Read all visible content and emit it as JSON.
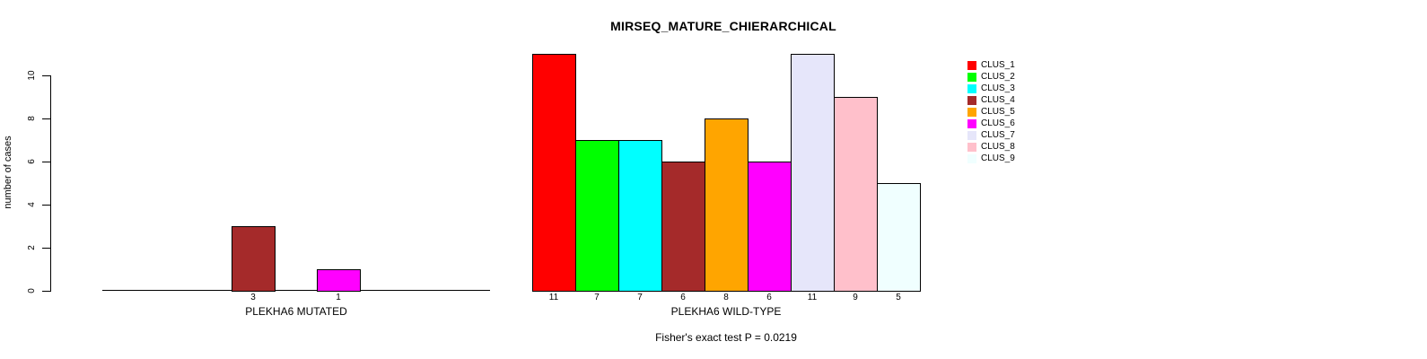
{
  "chart_data": {
    "type": "bar",
    "title": "MIRSEQ_MATURE_CHIERARCHICAL",
    "ylabel": "number of cases",
    "xlabel": "",
    "ylim": [
      0,
      11
    ],
    "yticks": [
      0,
      2,
      4,
      6,
      8,
      10
    ],
    "grid": false,
    "legend_position": "right",
    "clusters": [
      "CLUS_1",
      "CLUS_2",
      "CLUS_3",
      "CLUS_4",
      "CLUS_5",
      "CLUS_6",
      "CLUS_7",
      "CLUS_8",
      "CLUS_9"
    ],
    "colors": [
      "#FF0000",
      "#00FF00",
      "#00FFFF",
      "#A52A2A",
      "#FFA500",
      "#FF00FF",
      "#E6E6FA",
      "#FFC0CB",
      "#F0FFFF"
    ],
    "groups": [
      {
        "label": "PLEKHA6 MUTATED",
        "values": [
          0,
          0,
          0,
          3,
          0,
          1,
          0,
          0,
          0
        ]
      },
      {
        "label": "PLEKHA6 WILD-TYPE",
        "values": [
          11,
          7,
          7,
          6,
          8,
          6,
          11,
          9,
          5
        ]
      }
    ],
    "annotation": "Fisher's exact test P = 0.0219",
    "bar_value_labels_shown_only_when_nonzero": true
  }
}
